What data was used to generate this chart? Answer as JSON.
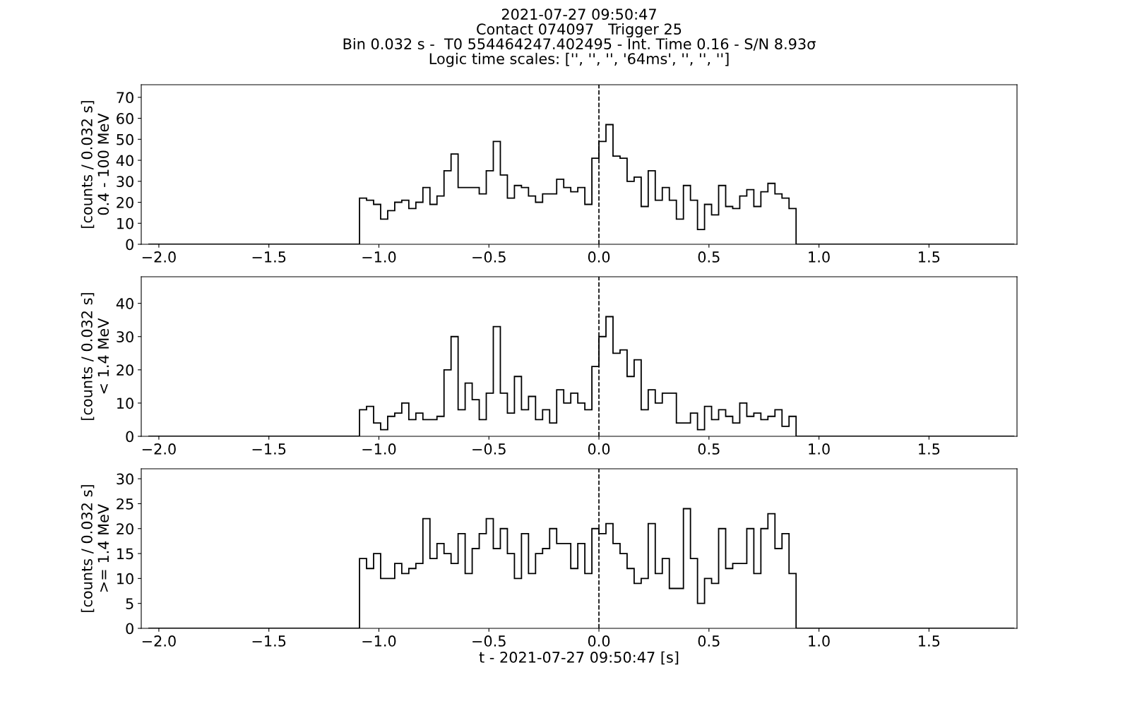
{
  "chart_data": [
    {
      "type": "histogram",
      "title": "2021-07-27 09:50:47\nContact 074097   Trigger 25\nBin 0.032 s -  T0 554464247.402495 - Int. Time 0.16 - S/N 8.93σ\nLogic time scales: ['', '', '', '64ms', '', '', '']",
      "ylabel": "[counts / 0.032 s]\n0.4 - 100 MeV",
      "color": "#000000",
      "bins": [
        -2.048,
        -2.016,
        -1.984,
        -1.952,
        -1.92,
        -1.888,
        -1.856,
        -1.824,
        -1.792,
        -1.76,
        -1.728,
        -1.696,
        -1.664,
        -1.632,
        -1.6,
        -1.568,
        -1.536,
        -1.504,
        -1.472,
        -1.44,
        -1.408,
        -1.376,
        -1.344,
        -1.312,
        -1.28,
        -1.248,
        -1.216,
        -1.184,
        -1.152,
        -1.12,
        -1.088,
        -1.056,
        -1.024,
        -0.992,
        -0.96,
        -0.928,
        -0.896,
        -0.864,
        -0.832,
        -0.8,
        -0.768,
        -0.736,
        -0.704,
        -0.672,
        -0.64,
        -0.608,
        -0.576,
        -0.544,
        -0.512,
        -0.48,
        -0.448,
        -0.416,
        -0.384,
        -0.352,
        -0.32,
        -0.288,
        -0.256,
        -0.224,
        -0.192,
        -0.16,
        -0.128,
        -0.096,
        -0.064,
        -0.032,
        0,
        0.032,
        0.064,
        0.096,
        0.128,
        0.16,
        0.192,
        0.224,
        0.256,
        0.288,
        0.32,
        0.352,
        0.384,
        0.416,
        0.448,
        0.48,
        0.512,
        0.544,
        0.576,
        0.608,
        0.64,
        0.672,
        0.704,
        0.736,
        0.768,
        0.8,
        0.832,
        0.864,
        0.896,
        0.928,
        0.96,
        0.992,
        1.024,
        1.056,
        1.088,
        1.12,
        1.152,
        1.184,
        1.216,
        1.248,
        1.28,
        1.312,
        1.344,
        1.376,
        1.408,
        1.44,
        1.472,
        1.504,
        1.536,
        1.568,
        1.6,
        1.632,
        1.664,
        1.696,
        1.728,
        1.76,
        1.792,
        1.824,
        1.856,
        1.888
      ],
      "values": [
        0,
        0,
        0,
        0,
        0,
        0,
        0,
        0,
        0,
        0,
        0,
        0,
        0,
        0,
        0,
        0,
        0,
        0,
        0,
        0,
        0,
        0,
        0,
        0,
        0,
        0,
        0,
        0,
        0,
        0,
        22,
        21,
        19,
        12,
        16,
        20,
        21,
        17,
        20,
        27,
        19,
        23,
        35,
        43,
        27,
        27,
        27,
        24,
        35,
        49,
        33,
        22,
        28,
        27,
        23,
        20,
        24,
        24,
        31,
        27,
        25,
        27,
        19,
        41,
        49,
        57,
        42,
        41,
        30,
        32,
        18,
        35,
        21,
        27,
        21,
        12,
        28,
        21,
        7,
        19,
        14,
        28,
        18,
        17,
        23,
        26,
        18,
        25,
        29,
        24,
        22,
        17,
        0,
        0,
        0,
        0,
        0,
        0,
        0,
        0,
        0,
        0,
        0,
        0,
        0,
        0,
        0,
        0,
        0,
        0,
        0,
        0,
        0,
        0,
        0,
        0,
        0,
        0,
        0,
        0,
        0,
        0,
        0
      ],
      "xlim": [
        -2.08,
        1.9
      ],
      "xticks": [
        {
          "value": -2.0,
          "label": "−2.0"
        },
        {
          "value": -1.5,
          "label": "−1.5"
        },
        {
          "value": -1.0,
          "label": "−1.0"
        },
        {
          "value": -0.5,
          "label": "−0.5"
        },
        {
          "value": 0.0,
          "label": "0.0"
        },
        {
          "value": 0.5,
          "label": "0.5"
        },
        {
          "value": 1.0,
          "label": "1.0"
        },
        {
          "value": 1.5,
          "label": "1.5"
        }
      ],
      "ylim": [
        0,
        76
      ],
      "yticks": [
        0,
        10,
        20,
        30,
        40,
        50,
        60,
        70
      ],
      "ref_lines": [
        {
          "axis": "x",
          "value": 0,
          "color": "#000000",
          "line_style": "dashed"
        }
      ]
    },
    {
      "type": "histogram",
      "ylabel": "[counts / 0.032 s]\n< 1.4 MeV",
      "color": "#000000",
      "bins": [
        -2.048,
        -2.016,
        -1.984,
        -1.952,
        -1.92,
        -1.888,
        -1.856,
        -1.824,
        -1.792,
        -1.76,
        -1.728,
        -1.696,
        -1.664,
        -1.632,
        -1.6,
        -1.568,
        -1.536,
        -1.504,
        -1.472,
        -1.44,
        -1.408,
        -1.376,
        -1.344,
        -1.312,
        -1.28,
        -1.248,
        -1.216,
        -1.184,
        -1.152,
        -1.12,
        -1.088,
        -1.056,
        -1.024,
        -0.992,
        -0.96,
        -0.928,
        -0.896,
        -0.864,
        -0.832,
        -0.8,
        -0.768,
        -0.736,
        -0.704,
        -0.672,
        -0.64,
        -0.608,
        -0.576,
        -0.544,
        -0.512,
        -0.48,
        -0.448,
        -0.416,
        -0.384,
        -0.352,
        -0.32,
        -0.288,
        -0.256,
        -0.224,
        -0.192,
        -0.16,
        -0.128,
        -0.096,
        -0.064,
        -0.032,
        0,
        0.032,
        0.064,
        0.096,
        0.128,
        0.16,
        0.192,
        0.224,
        0.256,
        0.288,
        0.32,
        0.352,
        0.384,
        0.416,
        0.448,
        0.48,
        0.512,
        0.544,
        0.576,
        0.608,
        0.64,
        0.672,
        0.704,
        0.736,
        0.768,
        0.8,
        0.832,
        0.864,
        0.896,
        0.928,
        0.96,
        0.992,
        1.024,
        1.056,
        1.088,
        1.12,
        1.152,
        1.184,
        1.216,
        1.248,
        1.28,
        1.312,
        1.344,
        1.376,
        1.408,
        1.44,
        1.472,
        1.504,
        1.536,
        1.568,
        1.6,
        1.632,
        1.664,
        1.696,
        1.728,
        1.76,
        1.792,
        1.824,
        1.856,
        1.888
      ],
      "values": [
        0,
        0,
        0,
        0,
        0,
        0,
        0,
        0,
        0,
        0,
        0,
        0,
        0,
        0,
        0,
        0,
        0,
        0,
        0,
        0,
        0,
        0,
        0,
        0,
        0,
        0,
        0,
        0,
        0,
        0,
        8,
        9,
        4,
        2,
        6,
        7,
        10,
        5,
        7,
        5,
        5,
        6,
        20,
        30,
        8,
        16,
        11,
        5,
        13,
        33,
        13,
        7,
        18,
        8,
        12,
        5,
        8,
        4,
        14,
        10,
        13,
        10,
        8,
        21,
        30,
        36,
        25,
        26,
        18,
        23,
        8,
        14,
        10,
        13,
        13,
        4,
        4,
        7,
        2,
        9,
        5,
        8,
        6,
        4,
        10,
        6,
        7,
        5,
        6,
        8,
        3,
        6,
        0,
        0,
        0,
        0,
        0,
        0,
        0,
        0,
        0,
        0,
        0,
        0,
        0,
        0,
        0,
        0,
        0,
        0,
        0,
        0,
        0,
        0,
        0,
        0,
        0,
        0,
        0,
        0,
        0,
        0,
        0
      ],
      "xlim": [
        -2.08,
        1.9
      ],
      "xticks": [
        {
          "value": -2.0,
          "label": "−2.0"
        },
        {
          "value": -1.5,
          "label": "−1.5"
        },
        {
          "value": -1.0,
          "label": "−1.0"
        },
        {
          "value": -0.5,
          "label": "−0.5"
        },
        {
          "value": 0.0,
          "label": "0.0"
        },
        {
          "value": 0.5,
          "label": "0.5"
        },
        {
          "value": 1.0,
          "label": "1.0"
        },
        {
          "value": 1.5,
          "label": "1.5"
        }
      ],
      "ylim": [
        0,
        48
      ],
      "yticks": [
        0,
        10,
        20,
        30,
        40
      ],
      "ref_lines": [
        {
          "axis": "x",
          "value": 0,
          "color": "#000000",
          "line_style": "dashed"
        }
      ]
    },
    {
      "type": "histogram",
      "ylabel": "[counts / 0.032 s]\n>= 1.4 MeV",
      "xlabel": "t - 2021-07-27 09:50:47 [s]",
      "color": "#000000",
      "bins": [
        -2.048,
        -2.016,
        -1.984,
        -1.952,
        -1.92,
        -1.888,
        -1.856,
        -1.824,
        -1.792,
        -1.76,
        -1.728,
        -1.696,
        -1.664,
        -1.632,
        -1.6,
        -1.568,
        -1.536,
        -1.504,
        -1.472,
        -1.44,
        -1.408,
        -1.376,
        -1.344,
        -1.312,
        -1.28,
        -1.248,
        -1.216,
        -1.184,
        -1.152,
        -1.12,
        -1.088,
        -1.056,
        -1.024,
        -0.992,
        -0.96,
        -0.928,
        -0.896,
        -0.864,
        -0.832,
        -0.8,
        -0.768,
        -0.736,
        -0.704,
        -0.672,
        -0.64,
        -0.608,
        -0.576,
        -0.544,
        -0.512,
        -0.48,
        -0.448,
        -0.416,
        -0.384,
        -0.352,
        -0.32,
        -0.288,
        -0.256,
        -0.224,
        -0.192,
        -0.16,
        -0.128,
        -0.096,
        -0.064,
        -0.032,
        0,
        0.032,
        0.064,
        0.096,
        0.128,
        0.16,
        0.192,
        0.224,
        0.256,
        0.288,
        0.32,
        0.352,
        0.384,
        0.416,
        0.448,
        0.48,
        0.512,
        0.544,
        0.576,
        0.608,
        0.64,
        0.672,
        0.704,
        0.736,
        0.768,
        0.8,
        0.832,
        0.864,
        0.896,
        0.928,
        0.96,
        0.992,
        1.024,
        1.056,
        1.088,
        1.12,
        1.152,
        1.184,
        1.216,
        1.248,
        1.28,
        1.312,
        1.344,
        1.376,
        1.408,
        1.44,
        1.472,
        1.504,
        1.536,
        1.568,
        1.6,
        1.632,
        1.664,
        1.696,
        1.728,
        1.76,
        1.792,
        1.824,
        1.856,
        1.888
      ],
      "values": [
        0,
        0,
        0,
        0,
        0,
        0,
        0,
        0,
        0,
        0,
        0,
        0,
        0,
        0,
        0,
        0,
        0,
        0,
        0,
        0,
        0,
        0,
        0,
        0,
        0,
        0,
        0,
        0,
        0,
        0,
        14,
        12,
        15,
        10,
        10,
        13,
        11,
        12,
        13,
        22,
        14,
        17,
        15,
        13,
        19,
        11,
        16,
        19,
        22,
        16,
        20,
        15,
        10,
        19,
        11,
        15,
        16,
        20,
        17,
        17,
        12,
        17,
        11,
        20,
        19,
        21,
        17,
        15,
        12,
        9,
        10,
        21,
        11,
        14,
        8,
        8,
        24,
        14,
        5,
        10,
        9,
        20,
        12,
        13,
        13,
        20,
        11,
        20,
        23,
        16,
        19,
        11,
        0,
        0,
        0,
        0,
        0,
        0,
        0,
        0,
        0,
        0,
        0,
        0,
        0,
        0,
        0,
        0,
        0,
        0,
        0,
        0,
        0,
        0,
        0,
        0,
        0,
        0,
        0,
        0,
        0,
        0,
        0
      ],
      "xlim": [
        -2.08,
        1.9
      ],
      "xticks": [
        {
          "value": -2.0,
          "label": "−2.0"
        },
        {
          "value": -1.5,
          "label": "−1.5"
        },
        {
          "value": -1.0,
          "label": "−1.0"
        },
        {
          "value": -0.5,
          "label": "−0.5"
        },
        {
          "value": 0.0,
          "label": "0.0"
        },
        {
          "value": 0.5,
          "label": "0.5"
        },
        {
          "value": 1.0,
          "label": "1.0"
        },
        {
          "value": 1.5,
          "label": "1.5"
        }
      ],
      "ylim": [
        0,
        32
      ],
      "yticks": [
        0,
        5,
        10,
        15,
        20,
        25,
        30
      ],
      "ref_lines": [
        {
          "axis": "x",
          "value": 0,
          "color": "#000000",
          "line_style": "dashed"
        }
      ]
    }
  ]
}
